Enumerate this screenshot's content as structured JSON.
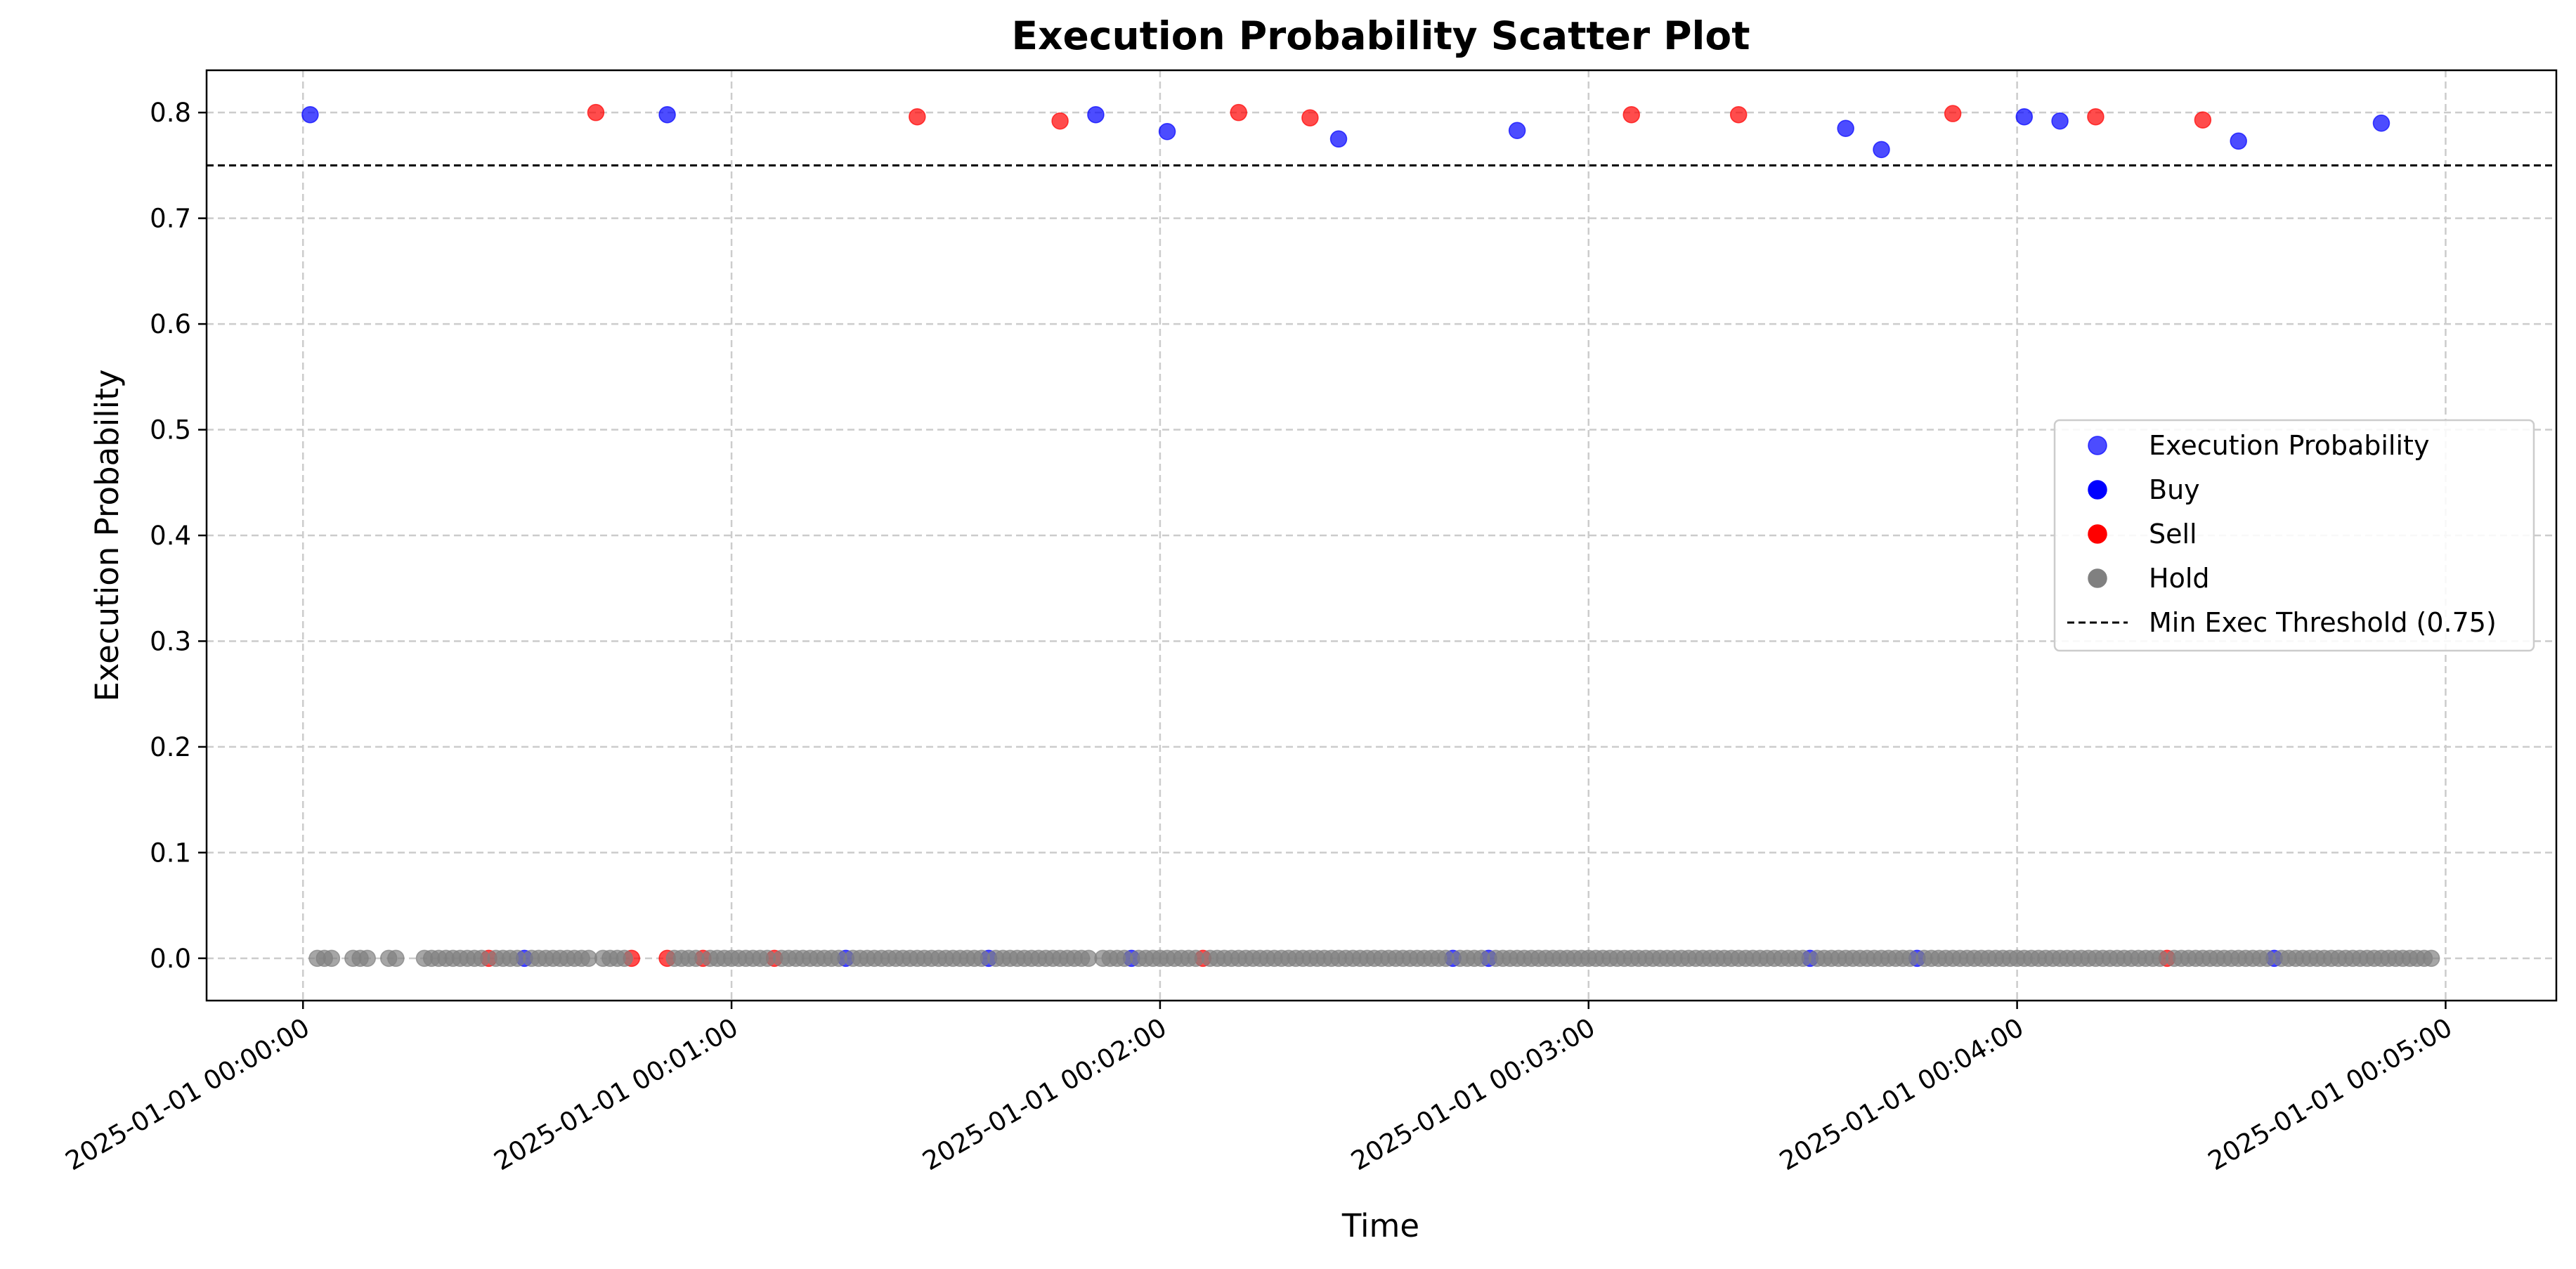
{
  "chart_data": {
    "type": "scatter",
    "title": "Execution Probability Scatter Plot",
    "xlabel": "Time",
    "ylabel": "Execution Probability",
    "x_unit": "seconds after 2025-01-01 00:00:00",
    "xlim": [
      -13.5,
      315.5
    ],
    "ylim": [
      -0.04,
      0.84
    ],
    "grid": true,
    "legend_position": "center-right",
    "x_ticks": [
      {
        "value": 0,
        "label": "2025-01-01 00:00:00"
      },
      {
        "value": 60,
        "label": "2025-01-01 00:01:00"
      },
      {
        "value": 120,
        "label": "2025-01-01 00:02:00"
      },
      {
        "value": 180,
        "label": "2025-01-01 00:03:00"
      },
      {
        "value": 240,
        "label": "2025-01-01 00:04:00"
      },
      {
        "value": 300,
        "label": "2025-01-01 00:05:00"
      }
    ],
    "y_ticks": [
      {
        "value": 0.0,
        "label": "0.0"
      },
      {
        "value": 0.1,
        "label": "0.1"
      },
      {
        "value": 0.2,
        "label": "0.2"
      },
      {
        "value": 0.3,
        "label": "0.3"
      },
      {
        "value": 0.4,
        "label": "0.4"
      },
      {
        "value": 0.5,
        "label": "0.5"
      },
      {
        "value": 0.6,
        "label": "0.6"
      },
      {
        "value": 0.7,
        "label": "0.7"
      },
      {
        "value": 0.8,
        "label": "0.8"
      }
    ],
    "colors": {
      "buy": "#0000ff",
      "sell": "#ff0000",
      "hold": "#808080",
      "threshold": "#000000"
    },
    "legend": [
      {
        "label": "Execution Probability",
        "kind": "marker",
        "color": "#0000ff",
        "alpha": 0.7
      },
      {
        "label": "Buy",
        "kind": "marker",
        "color": "#0000ff",
        "alpha": 1
      },
      {
        "label": "Sell",
        "kind": "marker",
        "color": "#ff0000",
        "alpha": 1
      },
      {
        "label": "Hold",
        "kind": "marker",
        "color": "#808080",
        "alpha": 1
      },
      {
        "label": "Min Exec Threshold (0.75)",
        "kind": "dashed-line",
        "color": "#000000",
        "alpha": 1
      }
    ],
    "threshold": {
      "value": 0.75,
      "label": "Min Exec Threshold (0.75)"
    },
    "series": [
      {
        "name": "Buy",
        "color": "#0000ff",
        "points": [
          [
            1,
            0.798
          ],
          [
            51,
            0.798
          ],
          [
            111,
            0.798
          ],
          [
            121,
            0.782
          ],
          [
            145,
            0.775
          ],
          [
            170,
            0.783
          ],
          [
            216,
            0.785
          ],
          [
            221,
            0.765
          ],
          [
            241,
            0.796
          ],
          [
            246,
            0.792
          ],
          [
            271,
            0.773
          ],
          [
            291,
            0.79
          ],
          [
            31,
            0
          ],
          [
            76,
            0
          ],
          [
            96,
            0
          ],
          [
            116,
            0
          ],
          [
            161,
            0
          ],
          [
            166,
            0
          ],
          [
            211,
            0
          ],
          [
            226,
            0
          ],
          [
            276,
            0
          ]
        ]
      },
      {
        "name": "Sell",
        "color": "#ff0000",
        "points": [
          [
            41,
            0.8
          ],
          [
            86,
            0.796
          ],
          [
            106,
            0.792
          ],
          [
            131,
            0.8
          ],
          [
            141,
            0.795
          ],
          [
            186,
            0.798
          ],
          [
            201,
            0.798
          ],
          [
            231,
            0.799
          ],
          [
            251,
            0.796
          ],
          [
            266,
            0.793
          ],
          [
            26,
            0
          ],
          [
            46,
            0
          ],
          [
            51,
            0
          ],
          [
            56,
            0
          ],
          [
            66,
            0
          ],
          [
            126,
            0
          ],
          [
            261,
            0
          ]
        ]
      },
      {
        "name": "Hold",
        "color": "#808080",
        "ranges": [
          [
            2,
            4
          ],
          [
            7,
            9
          ],
          [
            12,
            13
          ],
          [
            17,
            25
          ],
          [
            27,
            30
          ],
          [
            32,
            40
          ],
          [
            42,
            45
          ],
          [
            52,
            55
          ],
          [
            57,
            65
          ],
          [
            67,
            75
          ],
          [
            77,
            95
          ],
          [
            97,
            110
          ],
          [
            112,
            115
          ],
          [
            117,
            125
          ],
          [
            127,
            160
          ],
          [
            162,
            165
          ],
          [
            167,
            210
          ],
          [
            212,
            225
          ],
          [
            227,
            260
          ],
          [
            262,
            275
          ],
          [
            277,
            298
          ]
        ]
      }
    ]
  }
}
